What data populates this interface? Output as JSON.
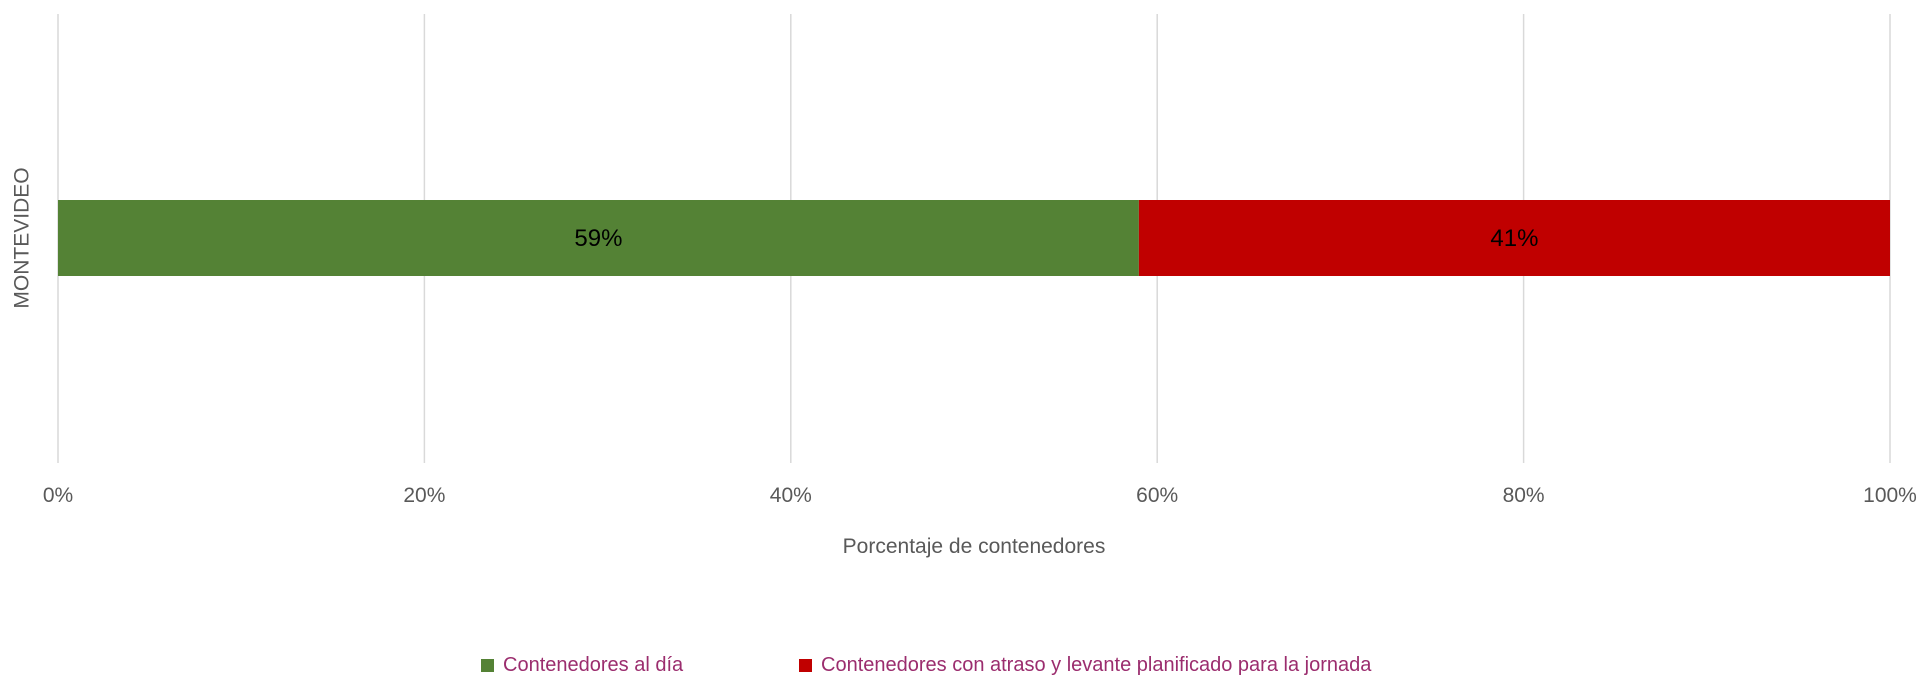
{
  "chart_data": {
    "type": "bar",
    "orientation": "horizontal",
    "stacked": true,
    "categories": [
      "MONTEVIDEO"
    ],
    "series": [
      {
        "name": "Contenedores al día",
        "values": [
          0.59
        ],
        "label": "59%",
        "color": "#548235"
      },
      {
        "name": "Contenedores con atraso y levante planificado para la jornada",
        "values": [
          0.41
        ],
        "label": "41%",
        "color": "#C00000"
      }
    ],
    "xlabel": "Porcentaje de contenedores",
    "ylabel": "",
    "xlim": [
      0,
      1
    ],
    "xticks": [
      "0%",
      "20%",
      "40%",
      "60%",
      "80%",
      "100%"
    ],
    "grid": true,
    "legend_position": "bottom",
    "colors": {
      "grid": "#D9D9D9",
      "axis_text": "#595959",
      "legend_text": "#9B2D6E"
    }
  }
}
